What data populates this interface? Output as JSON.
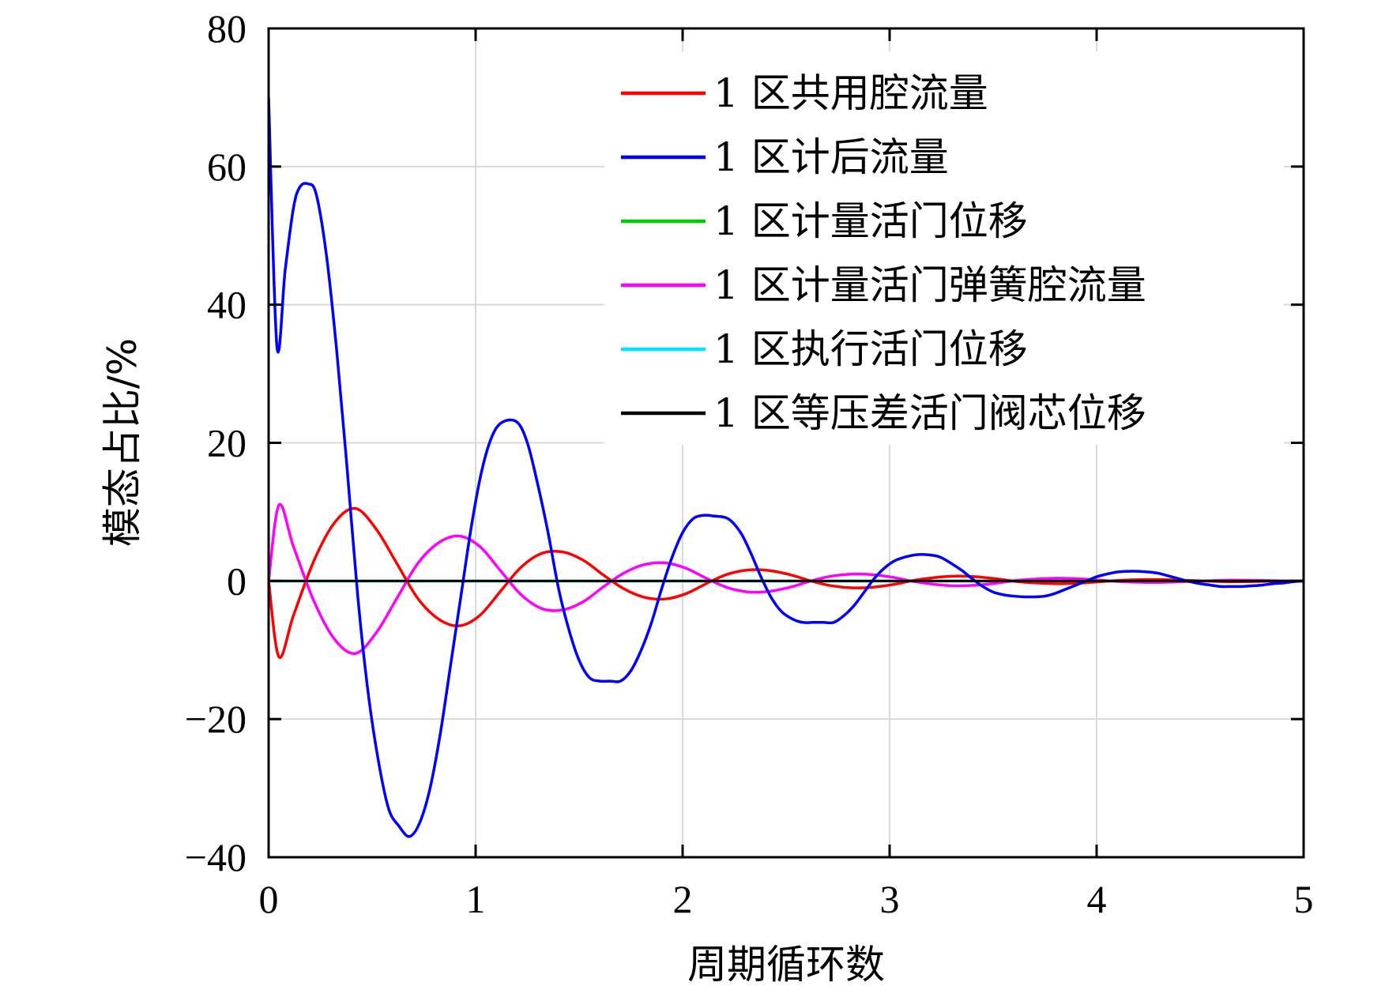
{
  "chart_data": {
    "type": "line",
    "title": "",
    "xlabel": "周期循环数",
    "ylabel": "模态占比/%",
    "xlim": [
      0,
      5
    ],
    "ylim": [
      -40,
      80
    ],
    "xticks": [
      0,
      1,
      2,
      3,
      4,
      5
    ],
    "yticks": [
      -40,
      -20,
      0,
      20,
      40,
      60,
      80
    ],
    "xtick_labels": [
      "0",
      "1",
      "2",
      "3",
      "4",
      "5"
    ],
    "ytick_labels": [
      "−40",
      "−20",
      "0",
      "20",
      "40",
      "60",
      "80"
    ],
    "grid": true,
    "legend_position": "top-right",
    "series": [
      {
        "name": "1 区共用腔流量",
        "color": "#ff0000",
        "x": [
          0,
          0.05,
          0.12,
          0.22,
          0.32,
          0.42,
          0.52,
          0.62,
          0.72,
          0.82,
          0.92,
          1.02,
          1.12,
          1.22,
          1.32,
          1.42,
          1.52,
          1.62,
          1.72,
          1.82,
          1.92,
          2.02,
          2.12,
          2.22,
          2.32,
          2.42,
          2.52,
          2.62,
          2.72,
          2.82,
          2.92,
          3.02,
          3.12,
          3.22,
          3.32,
          3.42,
          3.52,
          3.62,
          3.72,
          3.82,
          3.92,
          4.02,
          4.12,
          4.22,
          4.32,
          4.42,
          4.52,
          4.62,
          4.72,
          4.82,
          4.92,
          5.0
        ],
        "y": [
          0,
          -11,
          -5,
          3,
          8.5,
          10.5,
          7.5,
          2.5,
          -2.5,
          -5.5,
          -6.5,
          -5,
          -1.5,
          2,
          4,
          4.2,
          3,
          0.8,
          -1.2,
          -2.4,
          -2.6,
          -1.8,
          -0.3,
          1,
          1.6,
          1.5,
          0.9,
          0,
          -0.7,
          -1,
          -0.9,
          -0.5,
          0.1,
          0.5,
          0.7,
          0.6,
          0.3,
          -0.1,
          -0.3,
          -0.4,
          -0.3,
          -0.1,
          0.1,
          0.2,
          0.2,
          0.1,
          0,
          -0.1,
          -0.1,
          -0.05,
          0,
          0
        ]
      },
      {
        "name": "1 区计后流量",
        "color": "#0000ff",
        "x": [
          0,
          0.04,
          0.08,
          0.12,
          0.15,
          0.19,
          0.23,
          0.28,
          0.33,
          0.38,
          0.43,
          0.48,
          0.53,
          0.58,
          0.63,
          0.68,
          0.73,
          0.78,
          0.83,
          0.88,
          0.93,
          0.98,
          1.03,
          1.08,
          1.13,
          1.2,
          1.25,
          1.3,
          1.35,
          1.4,
          1.45,
          1.5,
          1.55,
          1.6,
          1.65,
          1.7,
          1.75,
          1.8,
          1.85,
          1.9,
          1.95,
          2.0,
          2.05,
          2.1,
          2.15,
          2.22,
          2.28,
          2.33,
          2.38,
          2.43,
          2.48,
          2.53,
          2.58,
          2.63,
          2.68,
          2.73,
          2.78,
          2.83,
          2.88,
          2.93,
          2.98,
          3.03,
          3.08,
          3.13,
          3.18,
          3.24,
          3.3,
          3.35,
          3.4,
          3.45,
          3.5,
          3.55,
          3.6,
          3.65,
          3.7,
          3.75,
          3.8,
          3.85,
          3.9,
          3.95,
          4.0,
          4.05,
          4.1,
          4.15,
          4.2,
          4.25,
          4.3,
          4.35,
          4.4,
          4.45,
          4.5,
          4.55,
          4.6,
          4.65,
          4.7,
          4.75,
          4.8,
          4.85,
          4.9,
          4.95,
          5.0
        ],
        "y": [
          70,
          34,
          45,
          54,
          57,
          57.5,
          56,
          47,
          33,
          16,
          -2,
          -16,
          -26,
          -33,
          -35.5,
          -37,
          -35,
          -30,
          -22,
          -12,
          -2,
          8,
          16,
          21,
          23,
          23,
          20,
          14,
          7,
          -1,
          -7,
          -11.5,
          -14,
          -14.5,
          -14.5,
          -14.5,
          -13,
          -10,
          -6,
          -1,
          3.5,
          7,
          9,
          9.5,
          9.4,
          9,
          7,
          4,
          0.5,
          -2.5,
          -4.5,
          -5.5,
          -6,
          -6,
          -6,
          -6,
          -5,
          -3.5,
          -1.5,
          0.5,
          2,
          3,
          3.5,
          3.8,
          3.8,
          3.5,
          2.5,
          1.5,
          0.3,
          -0.8,
          -1.6,
          -2,
          -2.2,
          -2.3,
          -2.3,
          -2.2,
          -1.8,
          -1.2,
          -0.6,
          0,
          0.6,
          1,
          1.3,
          1.4,
          1.4,
          1.3,
          1.1,
          0.7,
          0.3,
          -0.1,
          -0.4,
          -0.6,
          -0.8,
          -0.8,
          -0.8,
          -0.7,
          -0.6,
          -0.4,
          -0.3,
          -0.1,
          0
        ]
      },
      {
        "name": "1 区计量活门位移",
        "color": "#00cc00",
        "x": [
          0,
          5
        ],
        "y": [
          0,
          0
        ]
      },
      {
        "name": "1 区计量活门弹簧腔流量",
        "color": "#ff00ff",
        "x": [
          0,
          0.05,
          0.12,
          0.22,
          0.32,
          0.42,
          0.52,
          0.62,
          0.72,
          0.82,
          0.92,
          1.02,
          1.12,
          1.22,
          1.32,
          1.42,
          1.52,
          1.62,
          1.72,
          1.82,
          1.92,
          2.02,
          2.12,
          2.22,
          2.32,
          2.42,
          2.52,
          2.62,
          2.72,
          2.82,
          2.92,
          3.02,
          3.12,
          3.22,
          3.32,
          3.42,
          3.52,
          3.62,
          3.72,
          3.82,
          3.92,
          4.02,
          4.12,
          4.22,
          4.32,
          4.42,
          4.52,
          4.62,
          4.72,
          4.82,
          4.92,
          5.0
        ],
        "y": [
          0,
          11,
          5,
          -3,
          -8.5,
          -10.5,
          -7.5,
          -2.5,
          2.5,
          5.5,
          6.5,
          5,
          1.5,
          -2,
          -4,
          -4.2,
          -3,
          -0.8,
          1.2,
          2.4,
          2.6,
          1.8,
          0.3,
          -1,
          -1.6,
          -1.5,
          -0.9,
          0,
          0.7,
          1,
          0.9,
          0.5,
          -0.1,
          -0.5,
          -0.7,
          -0.6,
          -0.3,
          0.1,
          0.3,
          0.4,
          0.3,
          0.1,
          -0.1,
          -0.2,
          -0.2,
          -0.1,
          0,
          0.1,
          0.1,
          0.05,
          0,
          0
        ]
      },
      {
        "name": "1 区执行活门位移",
        "color": "#00e5ff",
        "x": [
          0,
          5
        ],
        "y": [
          0,
          0
        ]
      },
      {
        "name": "1 区等压差活门阀芯位移",
        "color": "#000000",
        "x": [
          0,
          5
        ],
        "y": [
          0,
          0
        ]
      }
    ]
  }
}
